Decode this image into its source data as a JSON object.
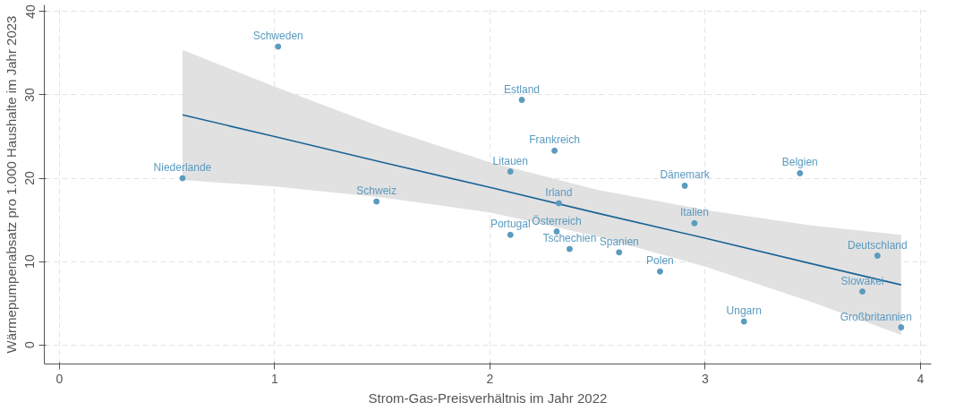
{
  "chart_data": {
    "type": "scatter",
    "xlabel": "Strom-Gas-Preisverhältnis im Jahr 2022",
    "ylabel": "Wärmepumpenabsatz pro 1.000 Haushalte im Jahr 2023",
    "xlim": [
      -0.07,
      4.05
    ],
    "ylim": [
      -2.3,
      40.8
    ],
    "xticks": [
      0,
      1,
      2,
      3,
      4
    ],
    "yticks": [
      0,
      10,
      20,
      30,
      40
    ],
    "grid": true,
    "series": [
      {
        "marker": "circle",
        "color": "#5b9bc0",
        "x": [
          0.572,
          1.016,
          1.473,
          2.095,
          2.148,
          2.3,
          2.32,
          2.095,
          2.31,
          2.37,
          2.6,
          2.79,
          2.905,
          2.95,
          3.18,
          3.44,
          3.8,
          3.73,
          3.91
        ],
        "values": [
          20.0,
          35.8,
          17.2,
          20.8,
          29.4,
          23.3,
          17.0,
          13.2,
          13.6,
          11.5,
          11.1,
          8.8,
          19.1,
          14.6,
          2.8,
          20.6,
          10.7,
          6.4,
          2.1
        ]
      },
      {
        "type": "line",
        "color": "#1a6496",
        "x": [
          0.572,
          1,
          1.5,
          2,
          2.5,
          3,
          3.5,
          3.91
        ],
        "values": [
          27.6,
          25.0,
          21.9,
          18.9,
          15.8,
          12.8,
          9.7,
          7.2
        ],
        "lower": [
          19.8,
          19.0,
          17.7,
          15.9,
          13.0,
          9.4,
          5.1,
          1.2
        ],
        "upper": [
          35.4,
          31.0,
          26.1,
          21.9,
          18.6,
          16.2,
          14.3,
          13.2
        ]
      }
    ],
    "annotations": [
      {
        "text": "Niederlande",
        "x": 0.572,
        "y": 20.0
      },
      {
        "text": "Schweden",
        "x": 1.016,
        "y": 35.8
      },
      {
        "text": "Schweiz",
        "x": 1.473,
        "y": 17.2
      },
      {
        "text": "Litauen",
        "x": 2.095,
        "y": 20.8
      },
      {
        "text": "Estland",
        "x": 2.148,
        "y": 29.4
      },
      {
        "text": "Frankreich",
        "x": 2.3,
        "y": 23.3
      },
      {
        "text": "Irland",
        "x": 2.32,
        "y": 17.0
      },
      {
        "text": "Portugal",
        "x": 2.095,
        "y": 13.2
      },
      {
        "text": "Österreich",
        "x": 2.31,
        "y": 13.6
      },
      {
        "text": "Tschechien",
        "x": 2.37,
        "y": 11.5
      },
      {
        "text": "Spanien",
        "x": 2.6,
        "y": 11.1
      },
      {
        "text": "Polen",
        "x": 2.79,
        "y": 8.8
      },
      {
        "text": "Dänemark",
        "x": 2.905,
        "y": 19.1
      },
      {
        "text": "Italien",
        "x": 2.95,
        "y": 14.6
      },
      {
        "text": "Ungarn",
        "x": 3.18,
        "y": 2.8
      },
      {
        "text": "Belgien",
        "x": 3.44,
        "y": 20.6
      },
      {
        "text": "Deutschland",
        "x": 3.8,
        "y": 10.7
      },
      {
        "text": "Slowakei",
        "x": 3.73,
        "y": 6.4
      },
      {
        "text": "Großbritannien",
        "x": 3.91,
        "y": 2.1
      }
    ]
  }
}
